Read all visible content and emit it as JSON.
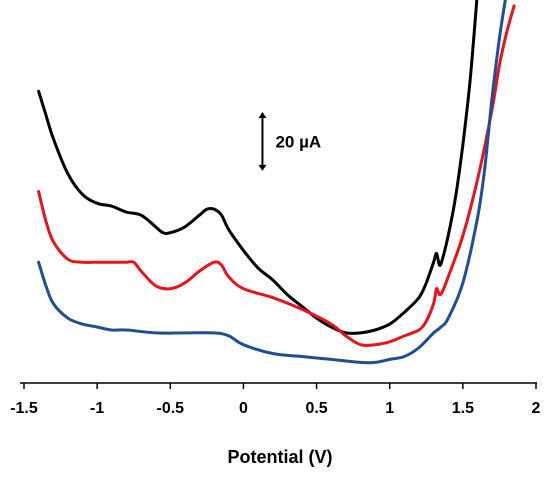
{
  "chart_data": {
    "type": "line",
    "xlabel": "Potential (V)",
    "ylabel": "",
    "xlim": [
      -1.5,
      2
    ],
    "ylim": [
      -5,
      125
    ],
    "xticks": [
      -1.5,
      -1,
      -0.5,
      0,
      0.5,
      1,
      1.5,
      2
    ],
    "xtick_labels": [
      "-1.5",
      "-1",
      "-0.5",
      "0",
      "0.5",
      "1",
      "1.5",
      "2"
    ],
    "grid": false,
    "scale_bar": {
      "label": "20 µA",
      "value": 20,
      "x": 0.13,
      "y_center": 77
    },
    "series": [
      {
        "color": "#000000",
        "x": [
          -1.4,
          -1.35,
          -1.3,
          -1.2,
          -1.1,
          -1.0,
          -0.9,
          -0.8,
          -0.7,
          -0.6,
          -0.55,
          -0.5,
          -0.4,
          -0.3,
          -0.25,
          -0.2,
          -0.15,
          -0.1,
          0.0,
          0.1,
          0.2,
          0.3,
          0.4,
          0.5,
          0.6,
          0.7,
          0.8,
          0.9,
          1.0,
          1.1,
          1.2,
          1.25,
          1.3,
          1.32,
          1.34,
          1.36,
          1.4,
          1.45,
          1.5,
          1.55,
          1.6
        ],
        "y": [
          94,
          86,
          78,
          66,
          59,
          56,
          55,
          53,
          52,
          48,
          46,
          46,
          48,
          52,
          54,
          54,
          52,
          47,
          40,
          34,
          30,
          25,
          21,
          17,
          14,
          12,
          12,
          13,
          15,
          19,
          24,
          29,
          36,
          39,
          35,
          37,
          45,
          58,
          76,
          98,
          128
        ]
      },
      {
        "color": "#e8141b",
        "x": [
          -1.4,
          -1.35,
          -1.3,
          -1.2,
          -1.1,
          -1.0,
          -0.9,
          -0.8,
          -0.75,
          -0.7,
          -0.6,
          -0.5,
          -0.4,
          -0.3,
          -0.2,
          -0.15,
          -0.1,
          0.0,
          0.2,
          0.4,
          0.6,
          0.7,
          0.8,
          0.9,
          1.0,
          1.1,
          1.2,
          1.25,
          1.3,
          1.32,
          1.34,
          1.36,
          1.4,
          1.5,
          1.6,
          1.7,
          1.75,
          1.8,
          1.85
        ],
        "y": [
          60,
          50,
          43,
          37,
          36,
          36,
          36,
          36,
          36,
          33,
          28,
          27,
          29,
          33,
          36,
          35,
          31,
          27,
          24,
          20,
          15,
          11,
          8,
          8,
          9,
          11,
          13,
          16,
          22,
          27,
          25,
          26,
          31,
          45,
          64,
          88,
          103,
          114,
          123
        ]
      },
      {
        "color": "#1f4e96",
        "x": [
          -1.4,
          -1.35,
          -1.3,
          -1.2,
          -1.1,
          -1.0,
          -0.9,
          -0.8,
          -0.6,
          -0.4,
          -0.2,
          -0.1,
          0.0,
          0.2,
          0.4,
          0.6,
          0.8,
          0.9,
          1.0,
          1.1,
          1.2,
          1.3,
          1.35,
          1.4,
          1.5,
          1.6,
          1.65,
          1.7,
          1.75,
          1.8
        ],
        "y": [
          36,
          28,
          22,
          17,
          15,
          14,
          13,
          13,
          12,
          12,
          12,
          11,
          8,
          5,
          4,
          3,
          2,
          2,
          3,
          4,
          7,
          12,
          14,
          17,
          29,
          51,
          68,
          92,
          112,
          128
        ]
      }
    ]
  }
}
